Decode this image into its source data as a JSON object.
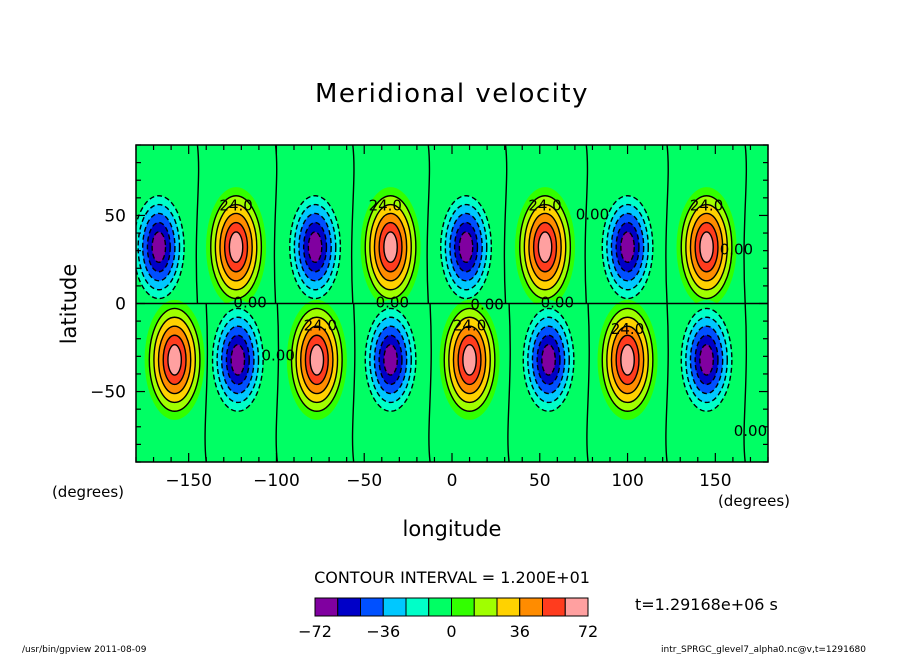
{
  "chart_data": {
    "type": "heatmap",
    "title": "Meridional velocity",
    "xlabel": "longitude",
    "ylabel": "latitude",
    "x_unit": "(degrees)",
    "y_unit": "(degrees)",
    "xlim": [
      -180,
      180
    ],
    "ylim": [
      -90,
      90
    ],
    "x_ticks": [
      -150,
      -100,
      -50,
      0,
      50,
      100,
      150
    ],
    "y_ticks": [
      50,
      0,
      -50
    ],
    "contour_interval_label": "CONTOUR INTERVAL = 1.200E+01",
    "contour_interval": 12,
    "time_label": "t=1.29168e+06 s",
    "colorbar": {
      "levels": [
        -72,
        -60,
        -48,
        -36,
        -24,
        -12,
        0,
        12,
        24,
        36,
        48,
        60,
        72
      ],
      "tick_labels": [
        -72,
        -36,
        0,
        36,
        72
      ],
      "colors": [
        "#8000a0",
        "#0000c8",
        "#0050ff",
        "#00c8ff",
        "#00ffc8",
        "#00ff64",
        "#32ff00",
        "#a0ff00",
        "#ffd200",
        "#ff8c00",
        "#ff3c1e",
        "#ffa0a0"
      ]
    },
    "cells": {
      "northern_hemisphere_center_lat": 32,
      "southern_hemisphere_center_lat": -32,
      "north_maxima_lon": [
        -123,
        -35,
        53,
        145
      ],
      "north_minima_lon": [
        -167,
        -78,
        8,
        100
      ],
      "south_maxima_lon": [
        -158,
        -77,
        10,
        100
      ],
      "south_minima_lon": [
        -122,
        -35,
        55,
        145
      ],
      "peak_value": 72
    },
    "contour_labels": [
      {
        "text": "24.0",
        "lon": -123,
        "lat": 55
      },
      {
        "text": "24.0",
        "lon": -38,
        "lat": 55
      },
      {
        "text": "24.0",
        "lon": 53,
        "lat": 55
      },
      {
        "text": "24.0",
        "lon": 145,
        "lat": 55
      },
      {
        "text": "24.0",
        "lon": -75,
        "lat": -13
      },
      {
        "text": "24.0",
        "lon": 10,
        "lat": -13
      },
      {
        "text": "24.0",
        "lon": 100,
        "lat": -15
      },
      {
        "text": "0.00",
        "lon": -115,
        "lat": 0
      },
      {
        "text": "0.00",
        "lon": -34,
        "lat": 0
      },
      {
        "text": "0.00",
        "lon": 20,
        "lat": -1
      },
      {
        "text": "0.00",
        "lon": 60,
        "lat": 0
      },
      {
        "text": "0.00",
        "lon": 80,
        "lat": 50
      },
      {
        "text": "0.00",
        "lon": 162,
        "lat": 30
      },
      {
        "text": "0.00",
        "lon": -99,
        "lat": -30
      },
      {
        "text": "0.00",
        "lon": 170,
        "lat": -73
      }
    ]
  },
  "footer": {
    "left": "/usr/bin/gpview   2011-08-09",
    "right": "intr_SPRGC_glevel7_alpha0.nc@v,t=1291680"
  }
}
